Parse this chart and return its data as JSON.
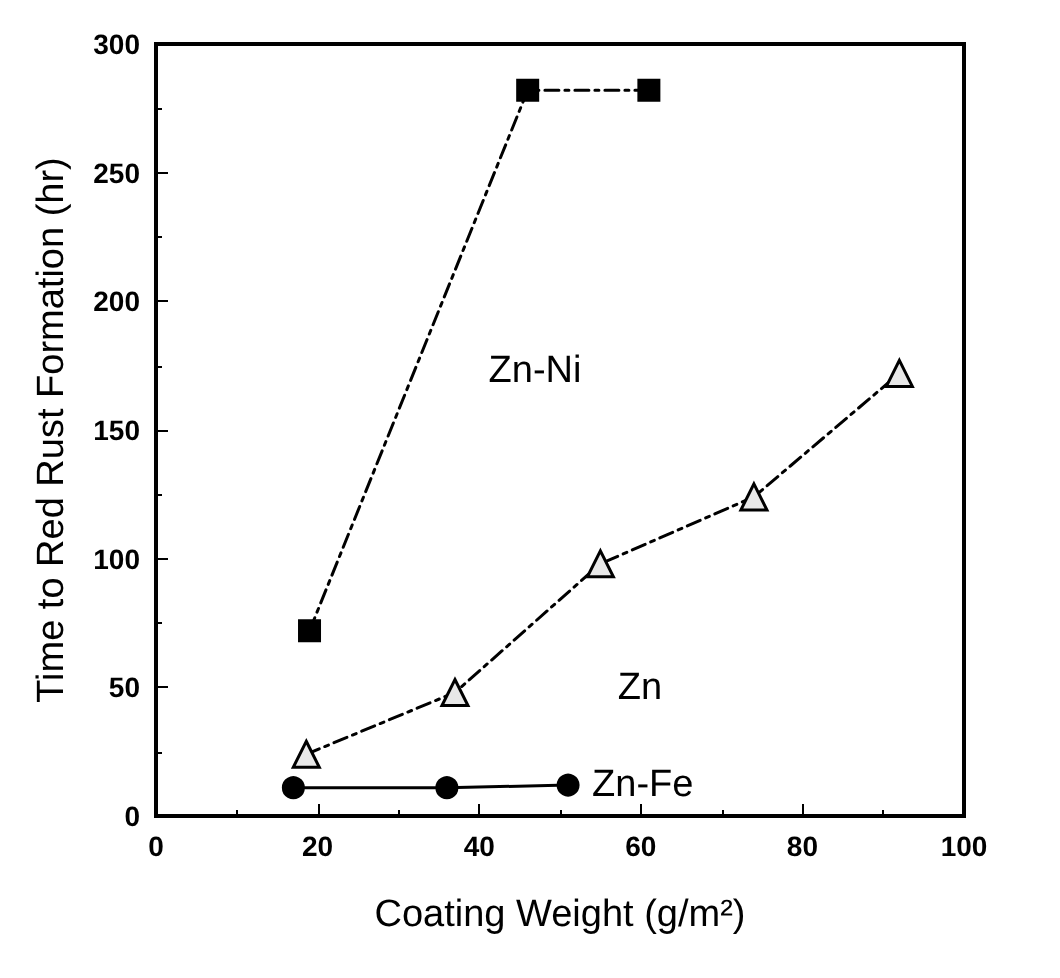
{
  "chart_data": {
    "type": "line",
    "xlabel": "Coating Weight (g/m²)",
    "ylabel": "Time to Red Rust Formation (hr)",
    "xlim": [
      0,
      100
    ],
    "xticks": [
      0,
      20,
      40,
      60,
      80,
      100
    ],
    "ylim": [
      0,
      300
    ],
    "yticks": [
      0,
      50,
      100,
      150,
      200,
      250,
      300
    ],
    "grid": false,
    "legend": false,
    "series": [
      {
        "name": "Zn-Ni",
        "color": "#000000",
        "marker": "square",
        "line_style": "dashed",
        "x": [
          19,
          46,
          61
        ],
        "values": [
          72,
          282,
          282
        ]
      },
      {
        "name": "Zn",
        "color": "#000000",
        "marker": "triangle",
        "line_style": "dashed",
        "x": [
          18.6,
          37,
          55,
          74,
          92
        ],
        "values": [
          24,
          48,
          98,
          124,
          172
        ]
      },
      {
        "name": "Zn-Fe",
        "color": "#000000",
        "marker": "circle",
        "line_style": "solid",
        "x": [
          17,
          36,
          51
        ],
        "values": [
          11,
          11,
          12
        ]
      }
    ]
  }
}
